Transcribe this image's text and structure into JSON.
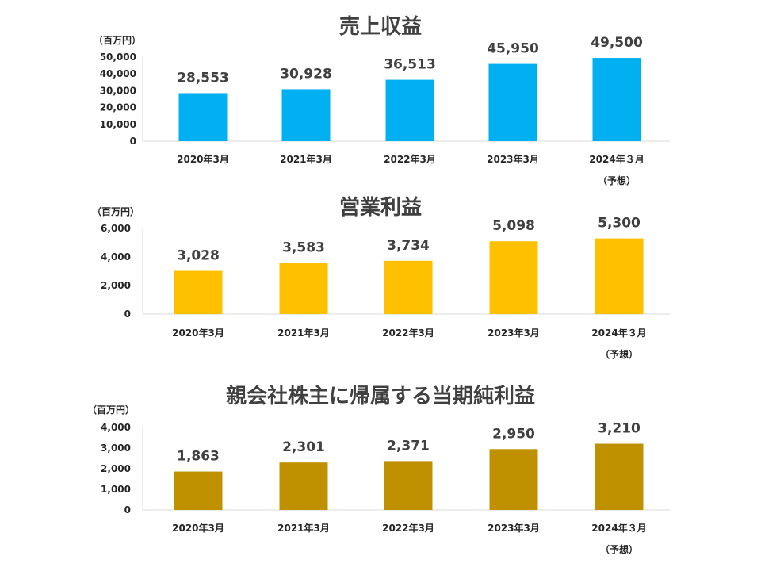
{
  "chart_data": [
    {
      "type": "bar",
      "title": "売上収益",
      "unit_label": "（百万円）",
      "color": "#00B0F0",
      "ylim": [
        0,
        50000
      ],
      "yticks": [
        "0",
        "10,000",
        "20,000",
        "30,000",
        "40,000",
        "50,000"
      ],
      "categories": [
        "2020年3月",
        "2021年3月",
        "2022年3月",
        "2023年3月",
        "2024年３月"
      ],
      "category_notes": [
        "",
        "",
        "",
        "",
        "（予想）"
      ],
      "values": [
        28553,
        30928,
        36513,
        45950,
        49500
      ],
      "value_labels": [
        "28,553",
        "30,928",
        "36,513",
        "45,950",
        "49,500"
      ],
      "grid": false
    },
    {
      "type": "bar",
      "title": "営業利益",
      "unit_label": "（百万円）",
      "color": "#FFC000",
      "ylim": [
        0,
        6000
      ],
      "yticks": [
        "0",
        "2,000",
        "4,000",
        "6,000"
      ],
      "categories": [
        "2020年3月",
        "2021年3月",
        "2022年3月",
        "2023年3月",
        "2024年３月"
      ],
      "category_notes": [
        "",
        "",
        "",
        "",
        "（予想）"
      ],
      "values": [
        3028,
        3583,
        3734,
        5098,
        5300
      ],
      "value_labels": [
        "3,028",
        "3,583",
        "3,734",
        "5,098",
        "5,300"
      ],
      "grid": false
    },
    {
      "type": "bar",
      "title": "親会社株主に帰属する当期純利益",
      "unit_label": "（百万円）",
      "color": "#BF9000",
      "ylim": [
        0,
        4000
      ],
      "yticks": [
        "0",
        "1,000",
        "2,000",
        "3,000",
        "4,000"
      ],
      "categories": [
        "2020年3月",
        "2021年3月",
        "2022年3月",
        "2023年3月",
        "2024年３月"
      ],
      "category_notes": [
        "",
        "",
        "",
        "",
        "（予想）"
      ],
      "values": [
        1863,
        2301,
        2371,
        2950,
        3210
      ],
      "value_labels": [
        "1,863",
        "2,301",
        "2,371",
        "2,950",
        "3,210"
      ],
      "grid": false
    }
  ]
}
